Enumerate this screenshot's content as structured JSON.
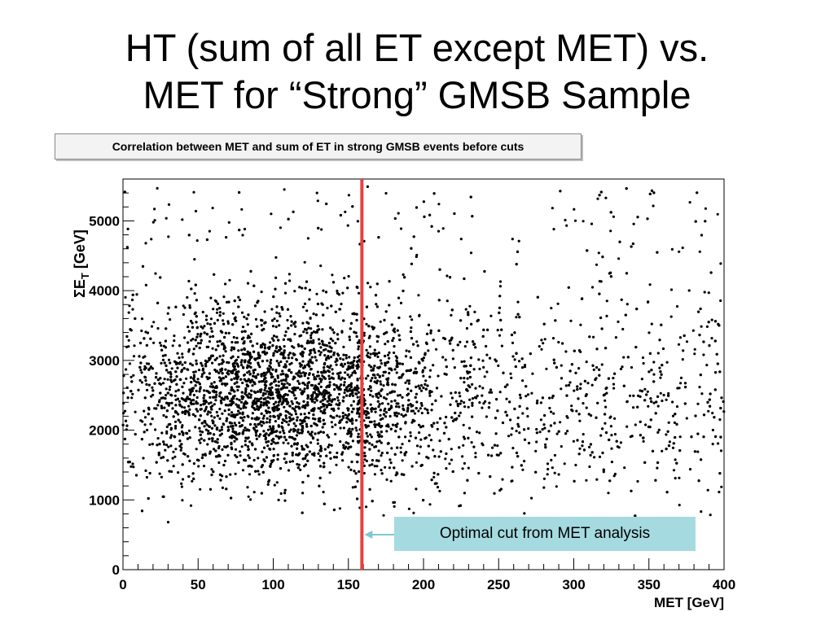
{
  "slide": {
    "title_line1": "HT (sum of all ET except MET) vs.",
    "title_line2": "MET for “Strong” GMSB Sample"
  },
  "plot_header": "Correlation between MET and sum of ET in strong GMSB events before cuts",
  "callout": "Optimal cut from MET analysis",
  "colors": {
    "marker": "#000000",
    "cut_line": "#e8413f",
    "callout_bg": "#a5dbe0",
    "callout_arrow": "#7ec8cf"
  },
  "chart_data": {
    "type": "scatter",
    "title": "Correlation between MET and sum of ET in strong GMSB events before cuts",
    "xlabel": "MET [GeV]",
    "ylabel": "ΣE_T [GeV]",
    "xlim": [
      0,
      400
    ],
    "ylim": [
      0,
      5600
    ],
    "x_ticks": [
      "0",
      "50",
      "100",
      "150",
      "200",
      "250",
      "300",
      "350",
      "400"
    ],
    "y_ticks": [
      "0",
      "1000",
      "2000",
      "3000",
      "4000",
      "5000"
    ],
    "grid": false,
    "cut_line": {
      "x": 159,
      "label": "Optimal cut from MET analysis"
    },
    "density_model": {
      "description": "≈5000 events; dense core near MET 60–160 GeV, ΣET 1800–3200 GeV, tail to 400 GeV",
      "core_x_center": 100,
      "core_y_center": 2500,
      "n_points": 5000
    }
  }
}
